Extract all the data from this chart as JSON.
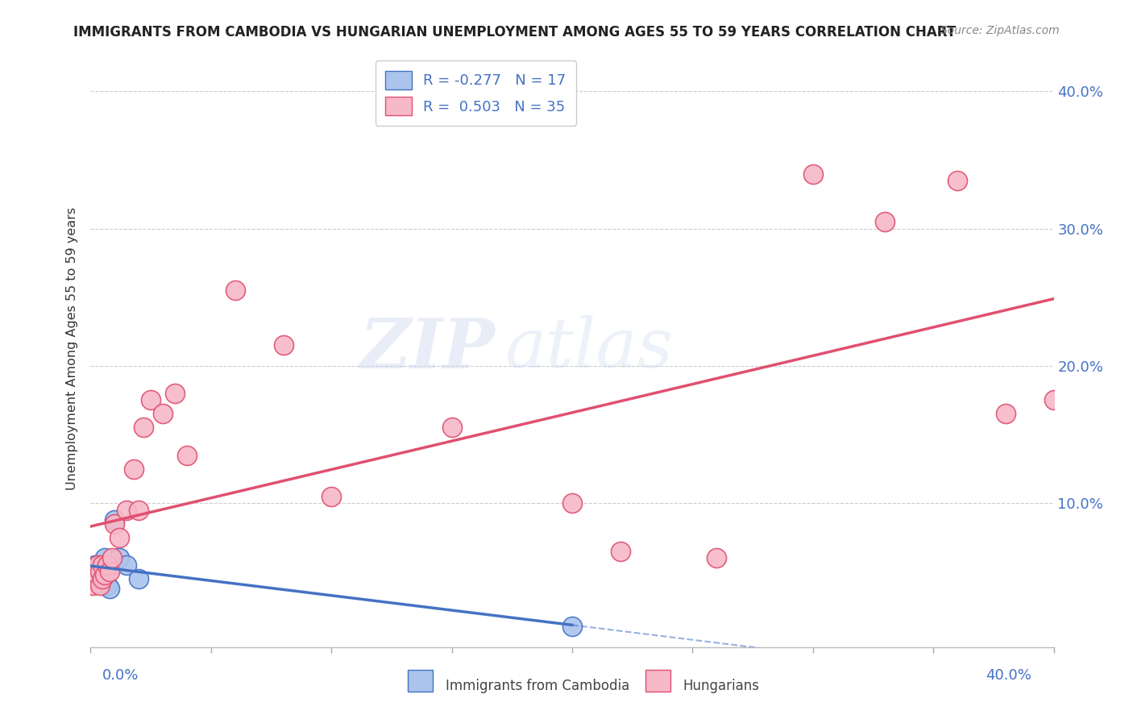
{
  "title": "IMMIGRANTS FROM CAMBODIA VS HUNGARIAN UNEMPLOYMENT AMONG AGES 55 TO 59 YEARS CORRELATION CHART",
  "source": "Source: ZipAtlas.com",
  "ylabel": "Unemployment Among Ages 55 to 59 years",
  "xlim": [
    0.0,
    0.4
  ],
  "ylim": [
    -0.005,
    0.43
  ],
  "yticks": [
    0.0,
    0.1,
    0.2,
    0.3,
    0.4
  ],
  "xticks": [
    0.0,
    0.05,
    0.1,
    0.15,
    0.2,
    0.25,
    0.3,
    0.35,
    0.4
  ],
  "color_cambodia_face": "#aac4ee",
  "color_cambodia_edge": "#4472c4",
  "color_hungarian_face": "#f7b8c8",
  "color_hungarian_edge": "#e05070",
  "color_line_cambodia": "#4472c4",
  "color_line_hungarian": "#e05070",
  "watermark_zip": "ZIP",
  "watermark_atlas": "atlas",
  "background_color": "#ffffff",
  "cambodia_x": [
    0.001,
    0.002,
    0.002,
    0.003,
    0.003,
    0.004,
    0.004,
    0.005,
    0.006,
    0.007,
    0.008,
    0.009,
    0.01,
    0.012,
    0.015,
    0.02,
    0.2
  ],
  "cambodia_y": [
    0.05,
    0.048,
    0.055,
    0.045,
    0.05,
    0.048,
    0.055,
    0.052,
    0.06,
    0.04,
    0.038,
    0.055,
    0.088,
    0.06,
    0.055,
    0.045,
    0.01
  ],
  "hungarian_x": [
    0.001,
    0.002,
    0.002,
    0.003,
    0.003,
    0.004,
    0.004,
    0.005,
    0.005,
    0.006,
    0.007,
    0.008,
    0.009,
    0.01,
    0.012,
    0.015,
    0.018,
    0.02,
    0.022,
    0.025,
    0.03,
    0.035,
    0.04,
    0.06,
    0.08,
    0.1,
    0.15,
    0.2,
    0.22,
    0.26,
    0.3,
    0.33,
    0.36,
    0.38,
    0.4
  ],
  "hungarian_y": [
    0.04,
    0.045,
    0.05,
    0.048,
    0.055,
    0.04,
    0.05,
    0.045,
    0.055,
    0.048,
    0.055,
    0.05,
    0.06,
    0.085,
    0.075,
    0.095,
    0.125,
    0.095,
    0.155,
    0.175,
    0.165,
    0.18,
    0.135,
    0.255,
    0.215,
    0.105,
    0.155,
    0.1,
    0.065,
    0.06,
    0.34,
    0.305,
    0.335,
    0.165,
    0.175
  ]
}
